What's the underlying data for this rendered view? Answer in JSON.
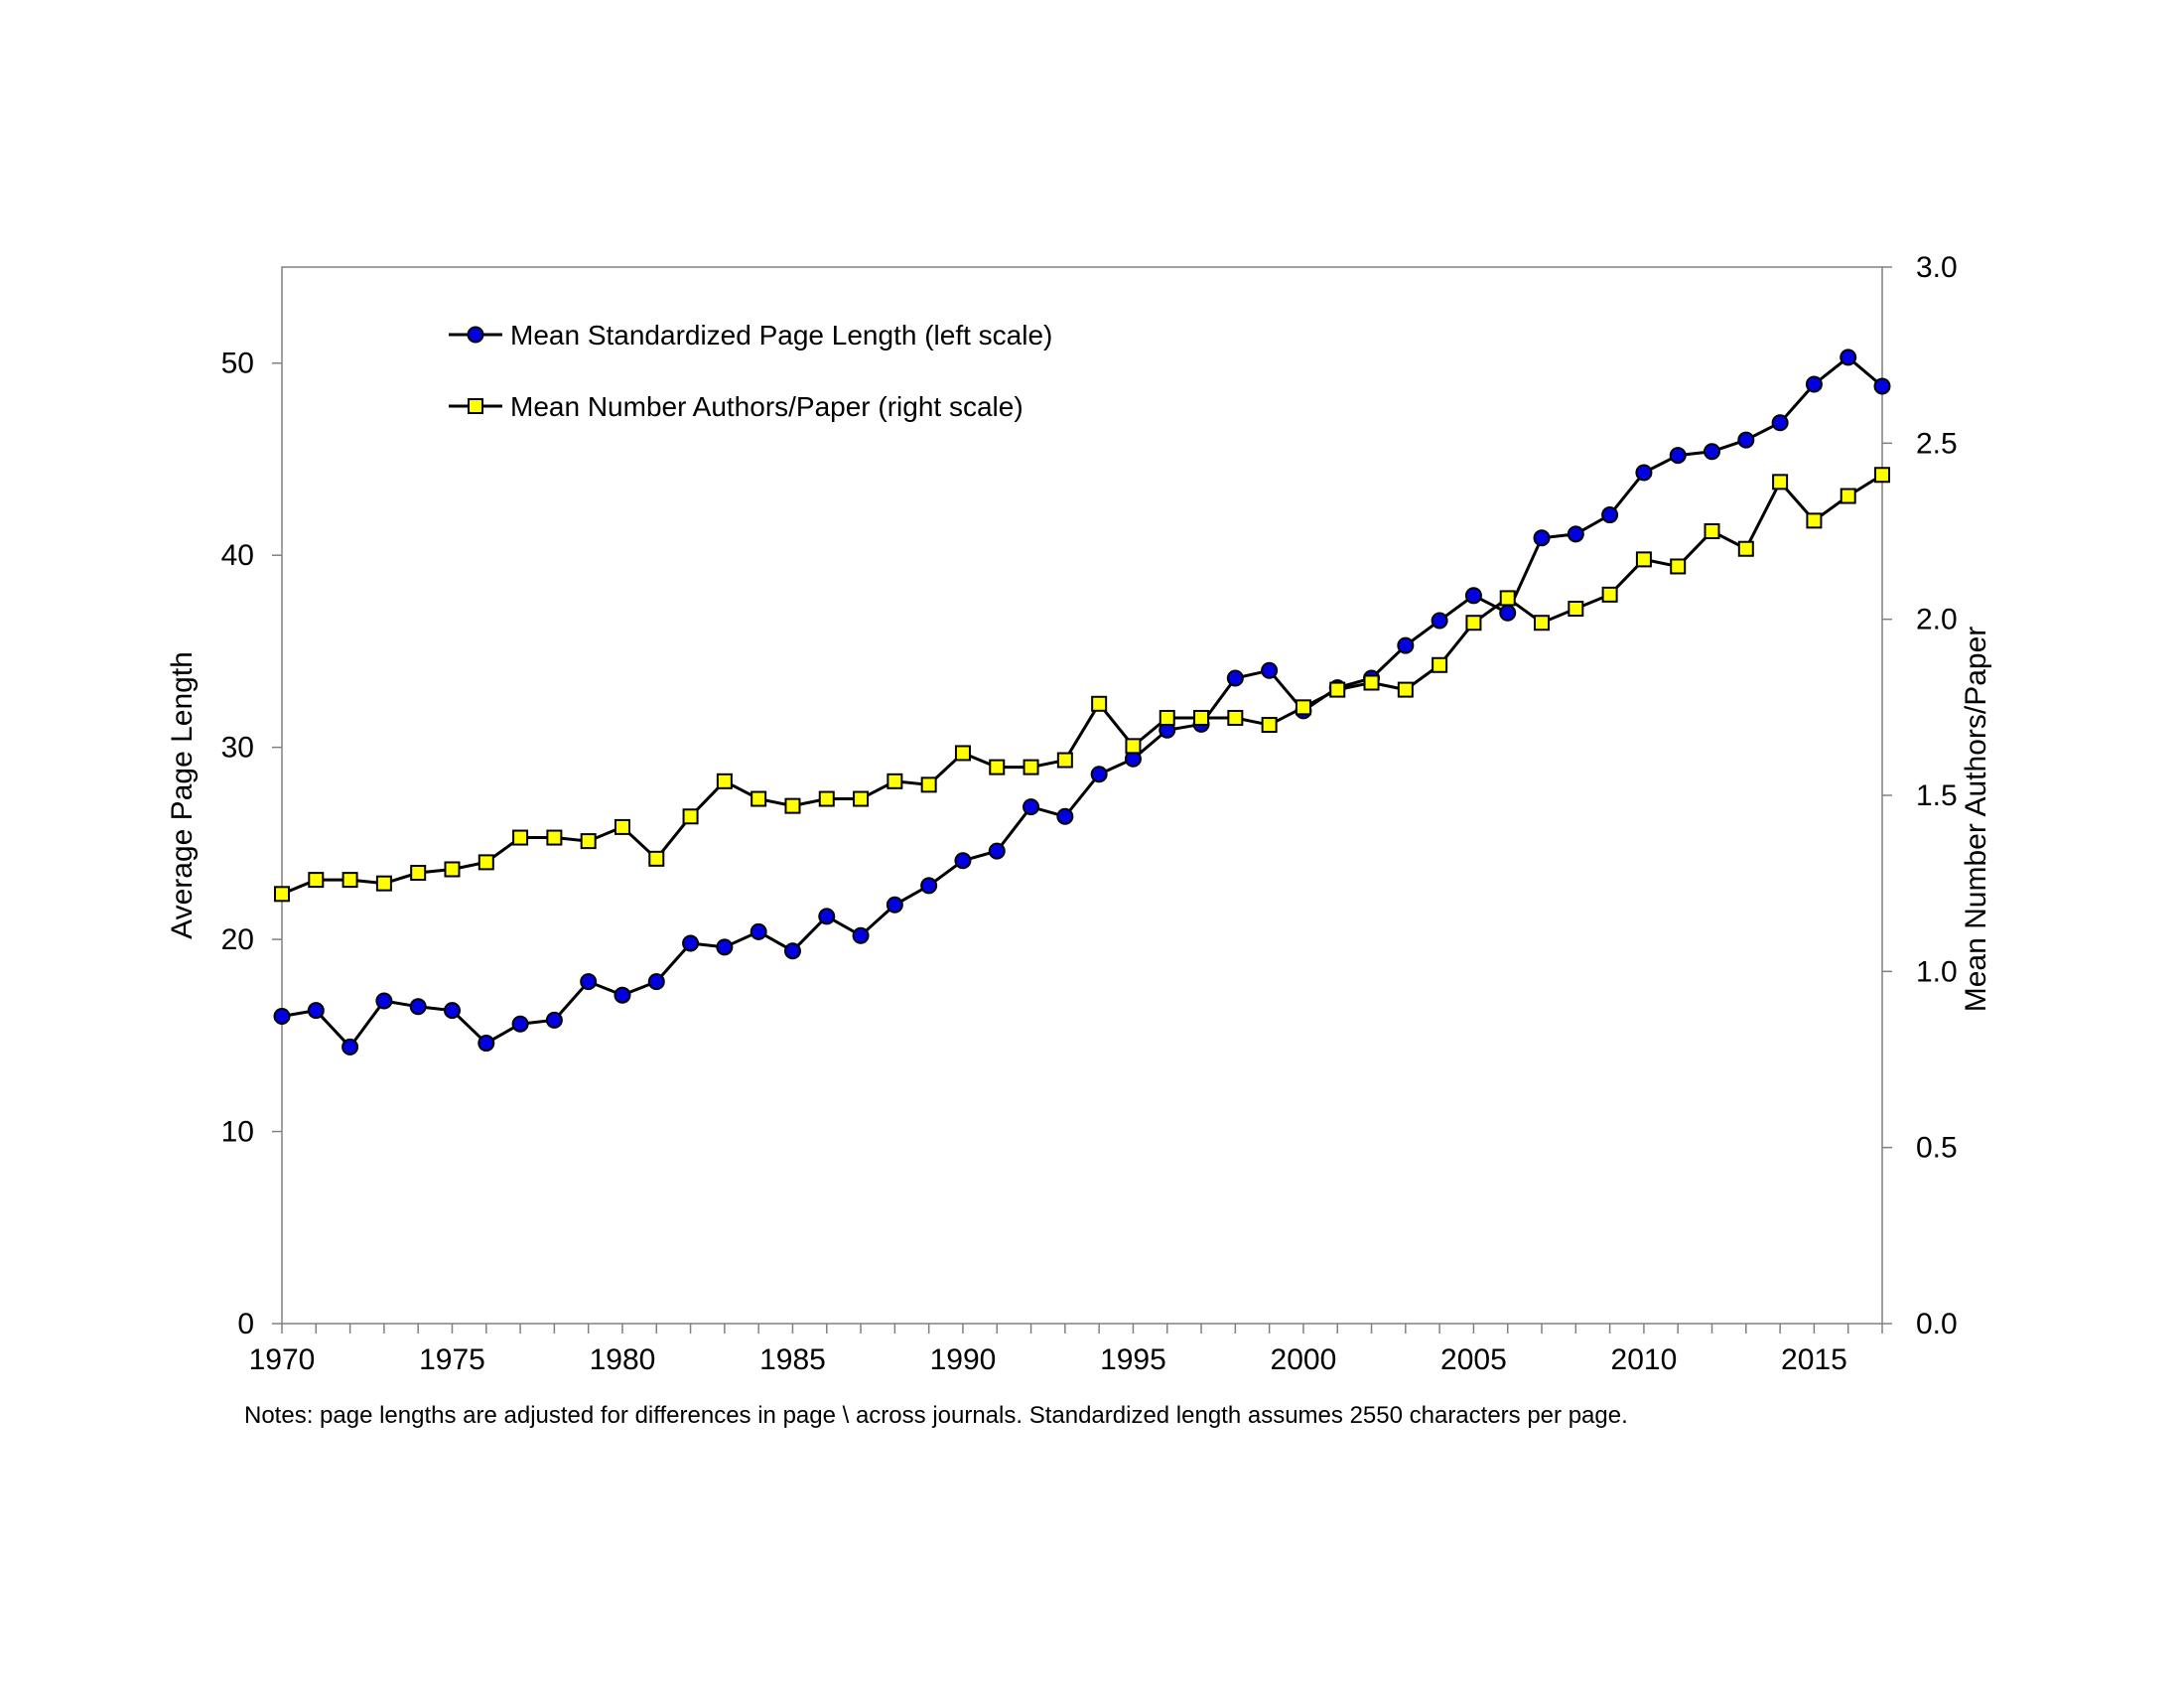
{
  "chart_data": {
    "type": "line",
    "title": "",
    "xlabel": "",
    "ylabel_left": "Average Page Length",
    "ylabel_right": "Mean Number Authors/Paper",
    "xlim": [
      1970,
      2017
    ],
    "ylim_left": [
      0,
      55
    ],
    "ylim_right": [
      0,
      3.0
    ],
    "x_ticks": [
      1970,
      1975,
      1980,
      1985,
      1990,
      1995,
      2000,
      2005,
      2010,
      2015
    ],
    "y_left_ticks": [
      "0",
      "10",
      "20",
      "30",
      "40",
      "50"
    ],
    "y_right_ticks": [
      "0.0",
      "0.5",
      "1.0",
      "1.5",
      "2.0",
      "2.5",
      "3.0"
    ],
    "grid": false,
    "legend_position": "top-left",
    "note": "Notes: page lengths are adjusted for differences in page \\ across journals. Standardized length assumes 2550 characters per page.",
    "x": [
      1970,
      1971,
      1972,
      1973,
      1974,
      1975,
      1976,
      1977,
      1978,
      1979,
      1980,
      1981,
      1982,
      1983,
      1984,
      1985,
      1986,
      1987,
      1988,
      1989,
      1990,
      1991,
      1992,
      1993,
      1994,
      1995,
      1996,
      1997,
      1998,
      1999,
      2000,
      2001,
      2002,
      2003,
      2004,
      2005,
      2006,
      2007,
      2008,
      2009,
      2010,
      2011,
      2012,
      2013,
      2014,
      2015,
      2016,
      2017
    ],
    "series": [
      {
        "name": "Mean Standardized Page Length (left scale)",
        "axis": "left",
        "marker": "circle",
        "color": "#0000e0",
        "values": [
          16.0,
          16.3,
          14.4,
          16.8,
          16.5,
          16.3,
          14.6,
          15.6,
          15.8,
          17.8,
          17.1,
          17.8,
          19.8,
          19.6,
          20.4,
          19.4,
          21.2,
          20.2,
          21.8,
          22.8,
          24.1,
          24.6,
          26.9,
          26.4,
          28.6,
          29.4,
          30.9,
          31.2,
          33.6,
          34.0,
          31.9,
          33.1,
          33.6,
          35.3,
          36.6,
          37.9,
          37.0,
          40.9,
          41.1,
          42.1,
          44.3,
          45.2,
          45.4,
          46.0,
          46.9,
          48.9,
          50.3,
          48.8
        ]
      },
      {
        "name": "Mean Number Authors/Paper (right scale)",
        "axis": "right",
        "marker": "square",
        "color": "#ffff00",
        "values": [
          1.22,
          1.26,
          1.26,
          1.25,
          1.28,
          1.29,
          1.31,
          1.38,
          1.38,
          1.37,
          1.41,
          1.32,
          1.44,
          1.54,
          1.49,
          1.47,
          1.49,
          1.49,
          1.54,
          1.53,
          1.62,
          1.58,
          1.58,
          1.6,
          1.76,
          1.64,
          1.72,
          1.72,
          1.72,
          1.7,
          1.75,
          1.8,
          1.82,
          1.8,
          1.87,
          1.99,
          2.06,
          1.99,
          2.03,
          2.07,
          2.17,
          2.15,
          2.25,
          2.2,
          2.39,
          2.28,
          2.35,
          2.41
        ]
      }
    ]
  }
}
